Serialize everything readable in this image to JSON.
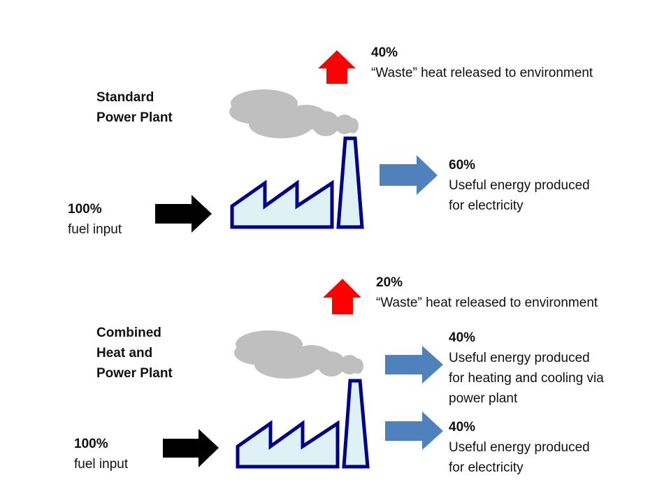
{
  "colors": {
    "waste_arrow": "#ff0000",
    "useful_arrow": "#4f81bd",
    "fuel_arrow": "#000000",
    "smoke": "#bfbfbf",
    "factory_outline": "#00008b",
    "factory_fill": "#dff1f5"
  },
  "standard": {
    "title_line1": "Standard",
    "title_line2": "Power Plant",
    "fuel_pct": "100%",
    "fuel_label": "fuel input",
    "waste_pct": "40%",
    "waste_label": "“Waste” heat released to environment",
    "electricity_pct": "60%",
    "electricity_line1": "Useful energy produced",
    "electricity_line2": "for electricity"
  },
  "chp": {
    "title_line1": "Combined",
    "title_line2": "Heat and",
    "title_line3": "Power Plant",
    "fuel_pct": "100%",
    "fuel_label": "fuel input",
    "waste_pct": "20%",
    "waste_label": "“Waste” heat released to environment",
    "heating_pct": "40%",
    "heating_line1": "Useful energy produced",
    "heating_line2": "for heating and cooling via",
    "heating_line3": "power plant",
    "electricity_pct": "40%",
    "electricity_line1": "Useful energy produced",
    "electricity_line2": "for electricity"
  }
}
